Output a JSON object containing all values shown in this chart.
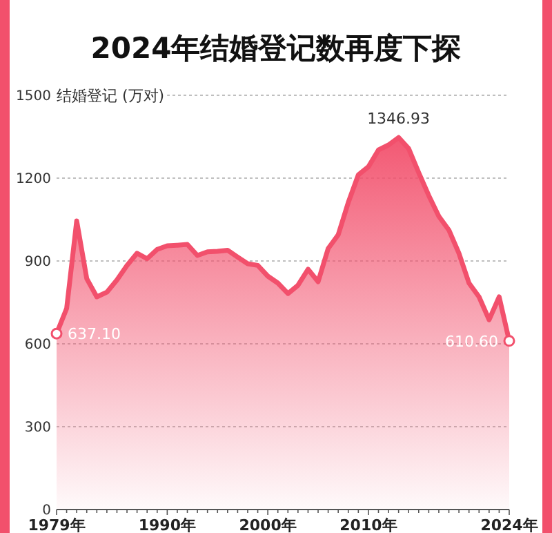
{
  "chart_data": {
    "type": "area",
    "title": "2024年结婚登记数再度下探",
    "ylabel": "结婚登记 (万对)",
    "x": [
      1979,
      1980,
      1981,
      1982,
      1983,
      1984,
      1985,
      1986,
      1987,
      1988,
      1989,
      1990,
      1991,
      1992,
      1993,
      1994,
      1995,
      1996,
      1997,
      1998,
      1999,
      2000,
      2001,
      2002,
      2003,
      2004,
      2005,
      2006,
      2007,
      2008,
      2009,
      2010,
      2011,
      2012,
      2013,
      2014,
      2015,
      2016,
      2017,
      2018,
      2019,
      2020,
      2021,
      2022,
      2023,
      2024
    ],
    "series": [
      {
        "color": "#f2506c",
        "values": [
          637.1,
          728,
          1045,
          836,
          770,
          787,
          831,
          884,
          928,
          908,
          942,
          955,
          957,
          960,
          920,
          933,
          935,
          939,
          914,
          890,
          884,
          845,
          820,
          782,
          812,
          870,
          825,
          945,
          995,
          1112,
          1212,
          1241,
          1302,
          1320,
          1346.93,
          1307,
          1220,
          1137,
          1062,
          1012,
          928,
          820,
          770,
          687,
          770,
          610.6
        ],
        "value_labels": [
          "637.10",
          null,
          null,
          null,
          null,
          null,
          null,
          null,
          null,
          null,
          null,
          null,
          null,
          null,
          null,
          null,
          null,
          null,
          null,
          null,
          null,
          null,
          null,
          null,
          null,
          null,
          null,
          null,
          null,
          null,
          null,
          null,
          null,
          null,
          "1346.93",
          null,
          null,
          null,
          null,
          null,
          null,
          null,
          null,
          null,
          null,
          "610.60"
        ]
      }
    ],
    "xlim": [
      1979,
      2024
    ],
    "xticks": [
      {
        "value": 1979,
        "label": "1979年"
      },
      {
        "value": 1980,
        "label": null
      },
      {
        "value": 1981,
        "label": null
      },
      {
        "value": 1982,
        "label": null
      },
      {
        "value": 1983,
        "label": null
      },
      {
        "value": 1984,
        "label": null
      },
      {
        "value": 1985,
        "label": null
      },
      {
        "value": 1986,
        "label": null
      },
      {
        "value": 1987,
        "label": null
      },
      {
        "value": 1988,
        "label": null
      },
      {
        "value": 1989,
        "label": null
      },
      {
        "value": 1990,
        "label": "1990年"
      },
      {
        "value": 1991,
        "label": null
      },
      {
        "value": 1992,
        "label": null
      },
      {
        "value": 1993,
        "label": null
      },
      {
        "value": 1994,
        "label": null
      },
      {
        "value": 1995,
        "label": null
      },
      {
        "value": 1996,
        "label": null
      },
      {
        "value": 1997,
        "label": null
      },
      {
        "value": 1998,
        "label": null
      },
      {
        "value": 1999,
        "label": null
      },
      {
        "value": 2000,
        "label": "2000年"
      },
      {
        "value": 2001,
        "label": null
      },
      {
        "value": 2002,
        "label": null
      },
      {
        "value": 2003,
        "label": null
      },
      {
        "value": 2004,
        "label": null
      },
      {
        "value": 2005,
        "label": null
      },
      {
        "value": 2006,
        "label": null
      },
      {
        "value": 2007,
        "label": null
      },
      {
        "value": 2008,
        "label": null
      },
      {
        "value": 2009,
        "label": null
      },
      {
        "value": 2010,
        "label": "2010年"
      },
      {
        "value": 2011,
        "label": null
      },
      {
        "value": 2012,
        "label": null
      },
      {
        "value": 2013,
        "label": null
      },
      {
        "value": 2014,
        "label": null
      },
      {
        "value": 2015,
        "label": null
      },
      {
        "value": 2016,
        "label": null
      },
      {
        "value": 2017,
        "label": null
      },
      {
        "value": 2018,
        "label": null
      },
      {
        "value": 2019,
        "label": null
      },
      {
        "value": 2020,
        "label": null
      },
      {
        "value": 2021,
        "label": null
      },
      {
        "value": 2022,
        "label": null
      },
      {
        "value": 2023,
        "label": null
      },
      {
        "value": 2024,
        "label": "2024年"
      }
    ],
    "ylim": [
      0,
      1500
    ],
    "yticks": [
      0,
      300,
      600,
      900,
      1200,
      1500
    ],
    "grid": "y"
  }
}
